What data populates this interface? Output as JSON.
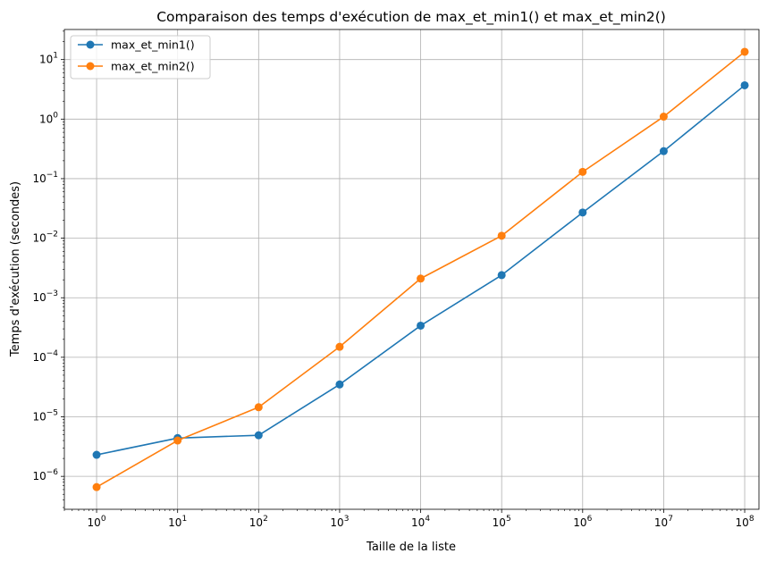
{
  "chart_data": {
    "type": "line",
    "title": "Comparaison des temps d'exécution de max_et_min1() et max_et_min2()",
    "xlabel": "Taille de la liste",
    "ylabel": "Temps d'exécution (secondes)",
    "xscale": "log",
    "yscale": "log",
    "xlim": [
      0.4,
      150000000
    ],
    "ylim": [
      2.8e-07,
      32
    ],
    "grid": true,
    "legend_position": "top-left",
    "x": [
      1,
      10,
      100,
      1000,
      10000,
      100000,
      1000000,
      10000000,
      100000000
    ],
    "x_ticks": [
      {
        "base": "10",
        "exp": "0"
      },
      {
        "base": "10",
        "exp": "1"
      },
      {
        "base": "10",
        "exp": "2"
      },
      {
        "base": "10",
        "exp": "3"
      },
      {
        "base": "10",
        "exp": "4"
      },
      {
        "base": "10",
        "exp": "5"
      },
      {
        "base": "10",
        "exp": "6"
      },
      {
        "base": "10",
        "exp": "7"
      },
      {
        "base": "10",
        "exp": "8"
      }
    ],
    "y_ticks": [
      {
        "base": "10",
        "exp": "−6"
      },
      {
        "base": "10",
        "exp": "−5"
      },
      {
        "base": "10",
        "exp": "−4"
      },
      {
        "base": "10",
        "exp": "−3"
      },
      {
        "base": "10",
        "exp": "−2"
      },
      {
        "base": "10",
        "exp": "−1"
      },
      {
        "base": "10",
        "exp": "0"
      },
      {
        "base": "10",
        "exp": "1"
      }
    ],
    "series": [
      {
        "name": "max_et_min1()",
        "color": "#1f77b4",
        "values": [
          2.3e-06,
          4.4e-06,
          4.9e-06,
          3.5e-05,
          0.00034,
          0.0024,
          0.027,
          0.29,
          3.7
        ]
      },
      {
        "name": "max_et_min2()",
        "color": "#ff7f0e",
        "values": [
          6.6e-07,
          4e-06,
          1.45e-05,
          0.00015,
          0.0021,
          0.011,
          0.13,
          1.1,
          13.5
        ]
      }
    ]
  }
}
